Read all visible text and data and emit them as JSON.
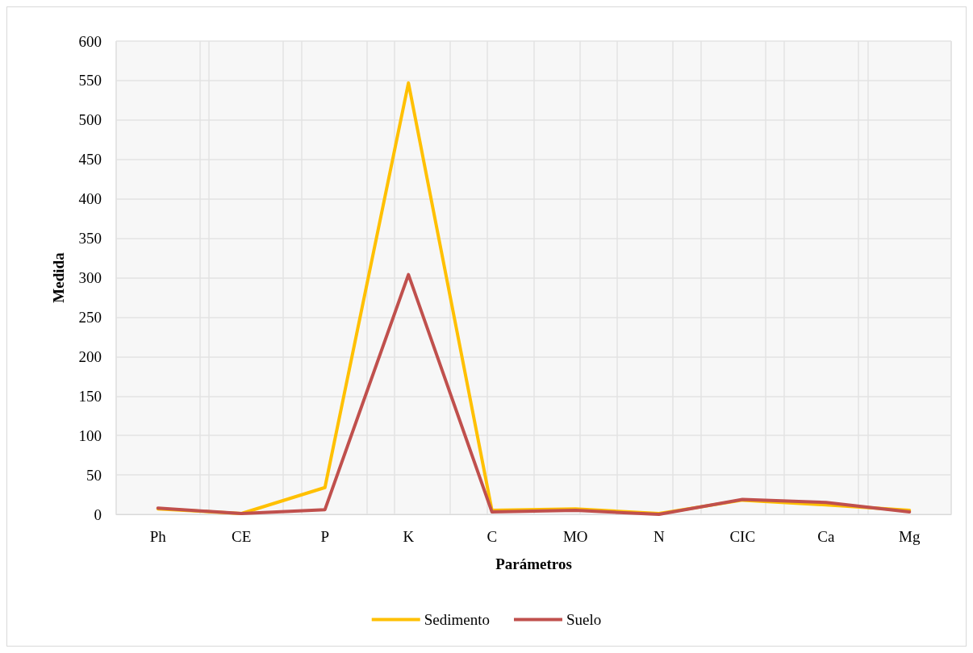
{
  "chart_data": {
    "type": "line",
    "xlabel": "Parámetros",
    "ylabel": "Medida",
    "categories": [
      "Ph",
      "CE",
      "P",
      "K",
      "C",
      "MO",
      "N",
      "CIC",
      "Ca",
      "Mg"
    ],
    "series": [
      {
        "name": "Sedimento",
        "color": "#ffc000",
        "values": [
          7,
          1,
          34,
          547,
          5,
          7,
          1,
          18,
          12,
          5
        ]
      },
      {
        "name": "Suelo",
        "color": "#c0504d",
        "values": [
          8,
          1,
          6,
          304,
          3,
          5,
          0,
          19,
          15,
          3
        ]
      }
    ],
    "ylim": [
      0,
      600
    ],
    "yticks": [
      0,
      50,
      100,
      150,
      200,
      250,
      300,
      350,
      400,
      450,
      500,
      550,
      600
    ],
    "grid": true,
    "legend": "bottom",
    "marker": "none",
    "line_style": "solid"
  }
}
